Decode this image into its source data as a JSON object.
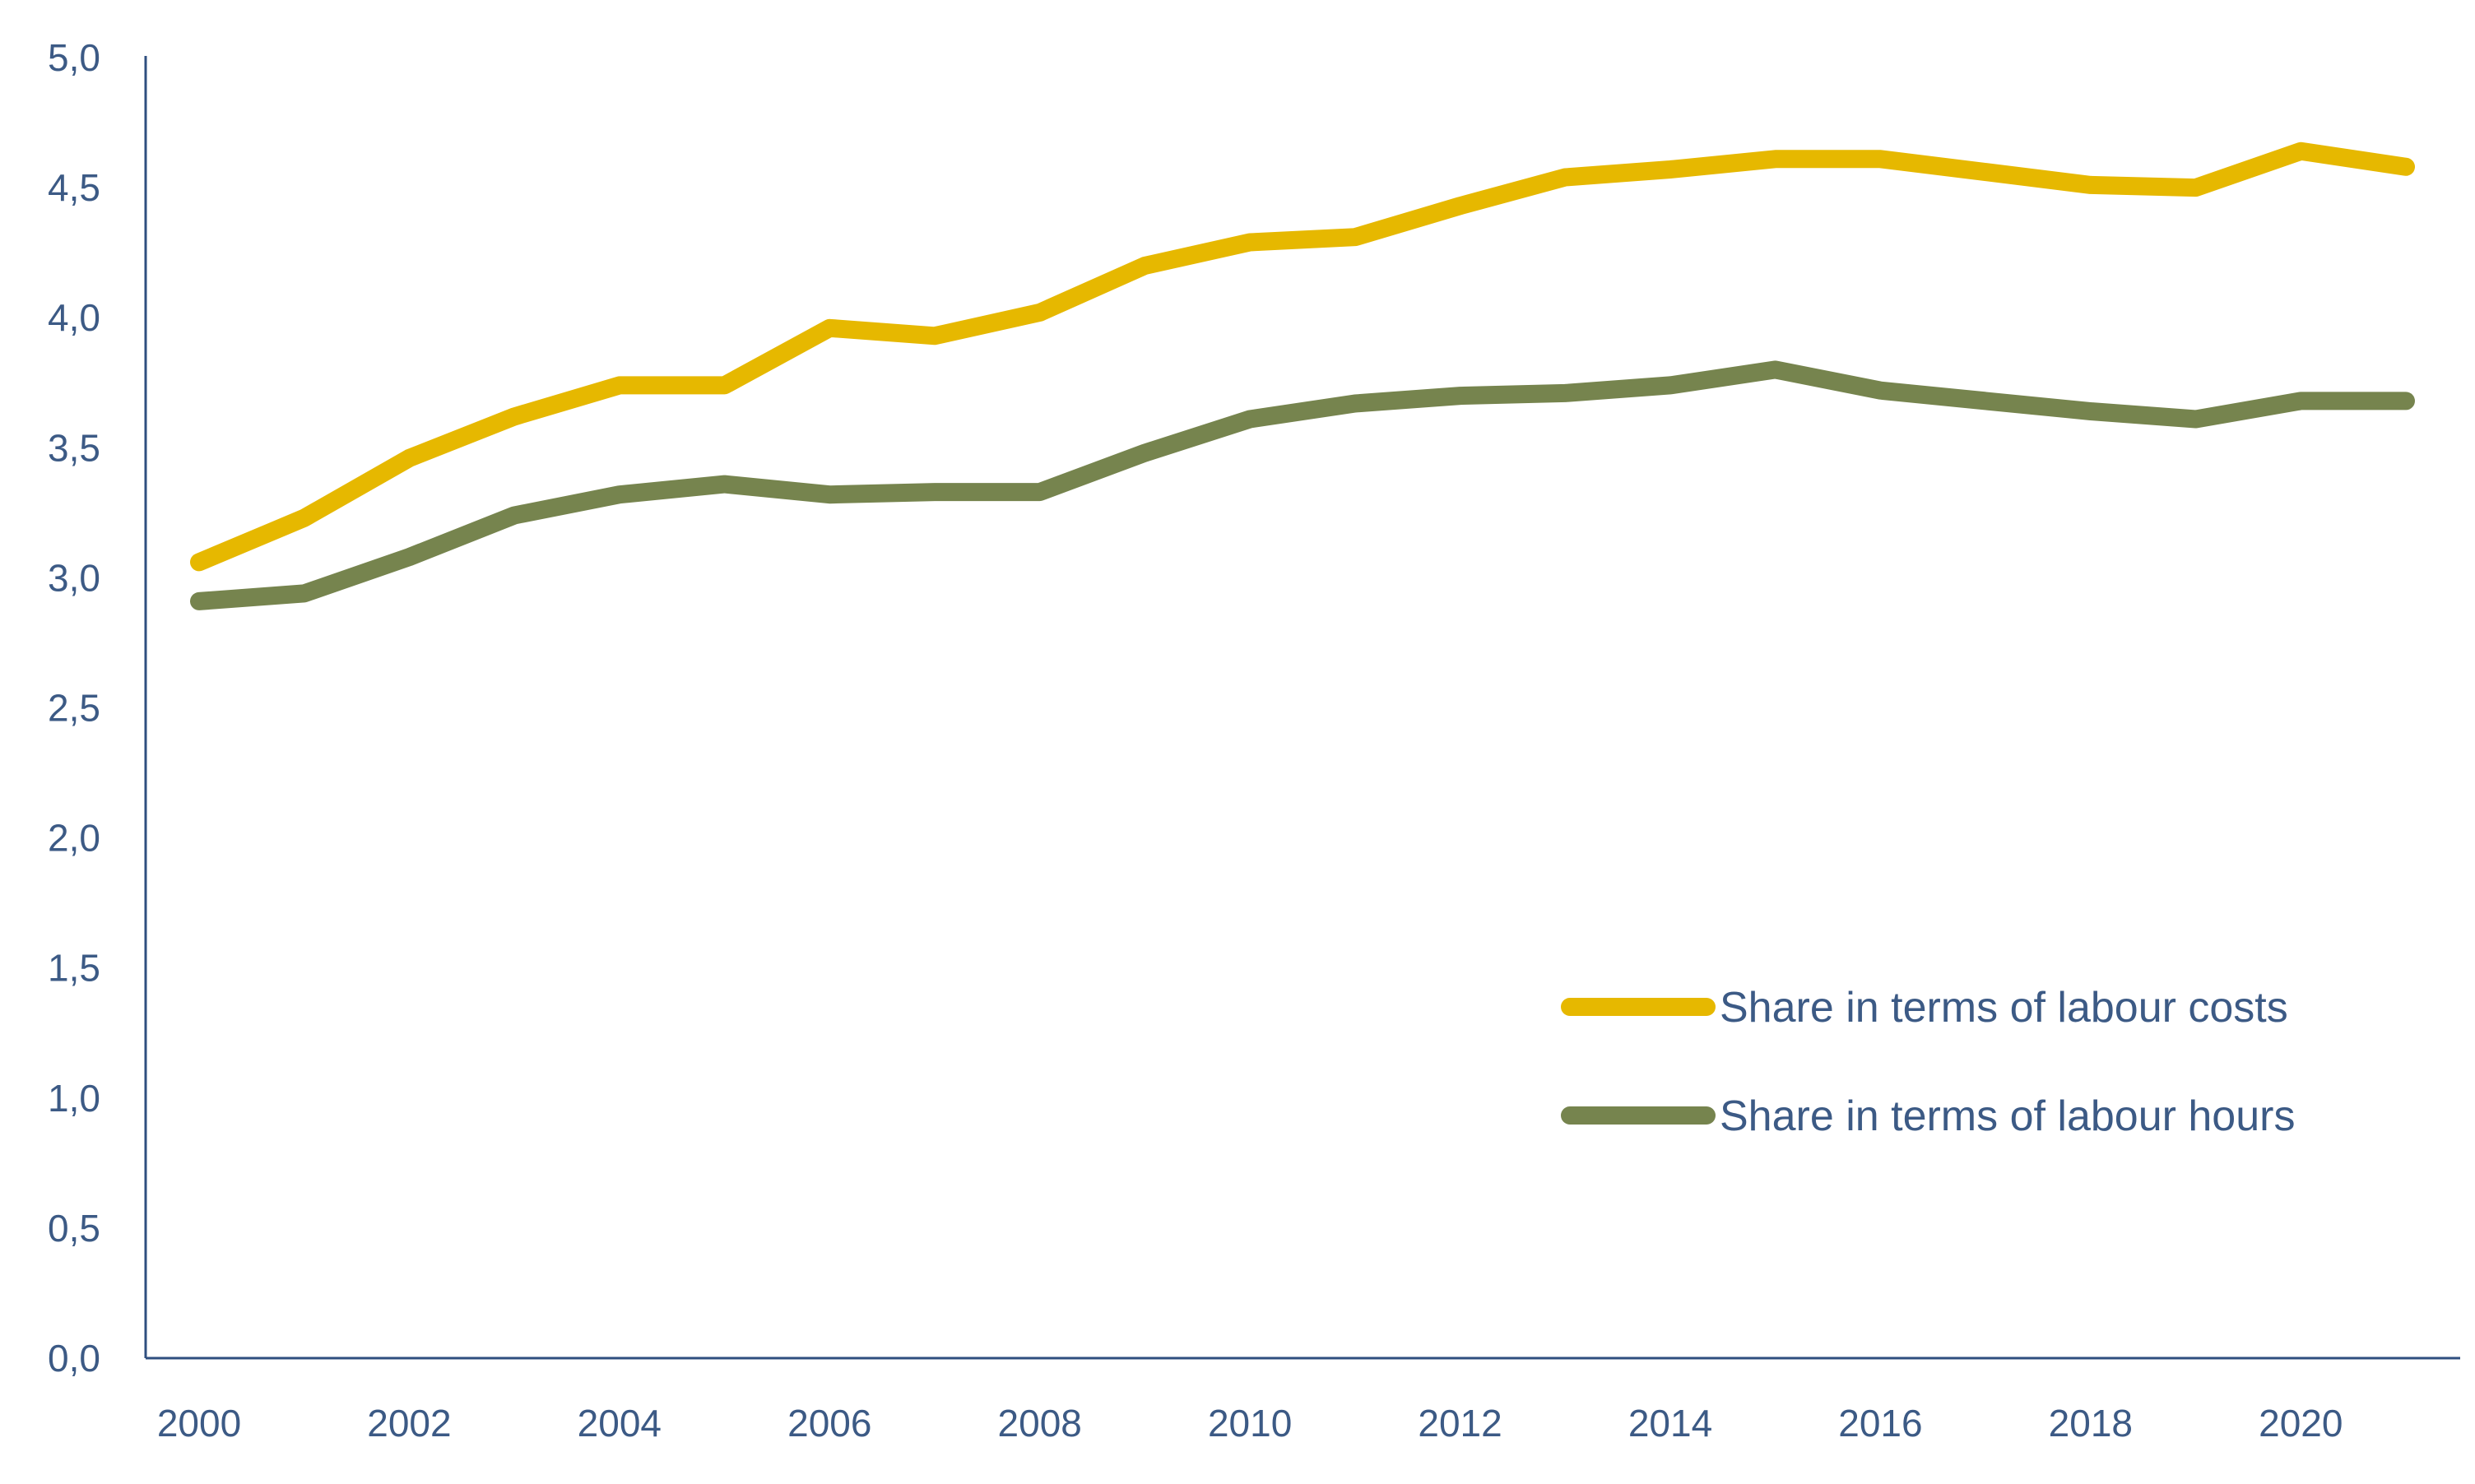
{
  "chart_data": {
    "type": "line",
    "title": "",
    "xlabel": "",
    "ylabel": "",
    "ylim": [
      0,
      5
    ],
    "xlim": [
      2000,
      2021
    ],
    "yticks": [
      0,
      0.5,
      1,
      1.5,
      2,
      2.5,
      3,
      3.5,
      4,
      4.5,
      5
    ],
    "ytick_labels": [
      "0,0",
      "0,5",
      "1,0",
      "1,5",
      "2,0",
      "2,5",
      "3,0",
      "3,5",
      "4,0",
      "4,5",
      "5,0"
    ],
    "xticks": [
      2000,
      2002,
      2004,
      2006,
      2008,
      2010,
      2012,
      2014,
      2016,
      2018,
      2020
    ],
    "xtick_labels": [
      "2000",
      "2002",
      "2004",
      "2006",
      "2008",
      "2010",
      "2012",
      "2014",
      "2016",
      "2018",
      "2020"
    ],
    "grid": false,
    "legend_position": "lower-right",
    "x": [
      2000,
      2001,
      2002,
      2003,
      2004,
      2005,
      2006,
      2007,
      2008,
      2009,
      2010,
      2011,
      2012,
      2013,
      2014,
      2015,
      2016,
      2017,
      2018,
      2019,
      2020,
      2021
    ],
    "series": [
      {
        "name": "Share in terms of labour costs",
        "color": "#e6b800",
        "values": [
          3.06,
          3.23,
          3.46,
          3.62,
          3.74,
          3.74,
          3.96,
          3.93,
          4.02,
          4.2,
          4.29,
          4.31,
          4.43,
          4.54,
          4.57,
          4.61,
          4.61,
          4.56,
          4.51,
          4.5,
          4.64,
          4.58
        ]
      },
      {
        "name": "Share in terms of labour hours",
        "color": "#76844e",
        "values": [
          2.91,
          2.94,
          3.08,
          3.24,
          3.32,
          3.36,
          3.32,
          3.33,
          3.33,
          3.48,
          3.61,
          3.67,
          3.7,
          3.71,
          3.74,
          3.8,
          3.72,
          3.68,
          3.64,
          3.61,
          3.68,
          3.68
        ]
      }
    ],
    "axis_color": "#2f4f7f"
  }
}
